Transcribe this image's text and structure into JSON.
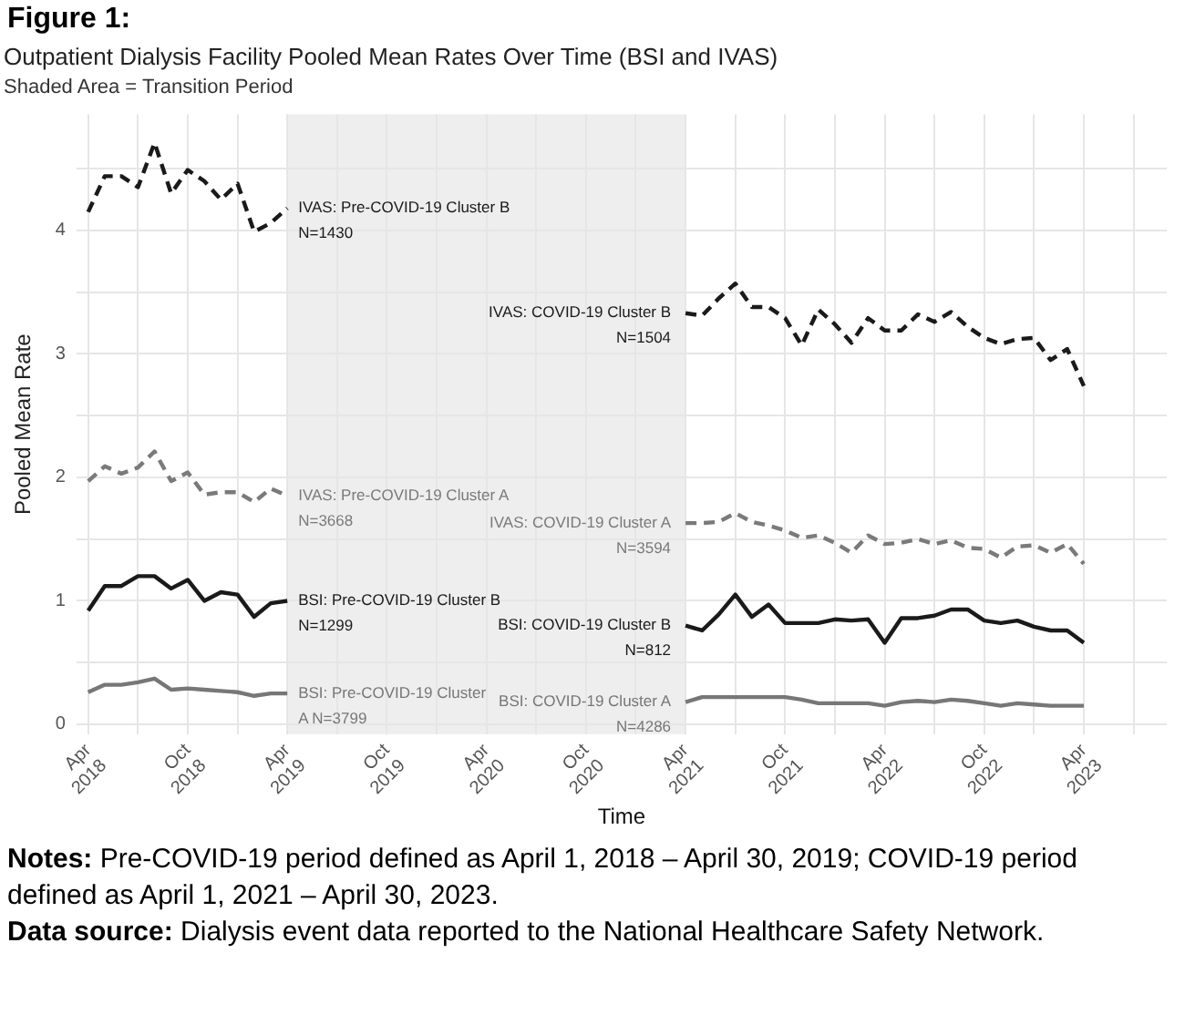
{
  "chart_data": {
    "type": "line",
    "title": "Outpatient Dialysis Facility Pooled Mean Rates Over Time (BSI and IVAS)",
    "subtitle": "Shaded Area = Transition Period",
    "xlabel": "Time",
    "ylabel": "Pooled Mean Rate",
    "annotations": [
      "Figure 1:",
      "Notes: Pre-COVID-19 period defined as April 1, 2018 – April 30, 2019; COVID-19 period defined as April 1, 2021 – April 30, 2023.",
      "Data source: Dialysis event data reported to the National Healthcare Safety Network."
    ],
    "xlim": [
      "2018-03-10",
      "2023-09-01"
    ],
    "xticks": [
      {
        "value": "2018-04",
        "label": "Apr 2018"
      },
      {
        "value": "2018-07",
        "label": null
      },
      {
        "value": "2018-10",
        "label": "Oct 2018"
      },
      {
        "value": "2019-01",
        "label": null
      },
      {
        "value": "2019-04",
        "label": "Apr 2019"
      },
      {
        "value": "2019-07",
        "label": null
      },
      {
        "value": "2019-10",
        "label": "Oct 2019"
      },
      {
        "value": "2020-01",
        "label": null
      },
      {
        "value": "2020-04",
        "label": "Apr 2020"
      },
      {
        "value": "2020-07",
        "label": null
      },
      {
        "value": "2020-10",
        "label": "Oct 2020"
      },
      {
        "value": "2021-01",
        "label": null
      },
      {
        "value": "2021-04",
        "label": "Apr 2021"
      },
      {
        "value": "2021-07",
        "label": null
      },
      {
        "value": "2021-10",
        "label": "Oct 2021"
      },
      {
        "value": "2022-01",
        "label": null
      },
      {
        "value": "2022-04",
        "label": "Apr 2022"
      },
      {
        "value": "2022-07",
        "label": null
      },
      {
        "value": "2022-10",
        "label": "Oct 2022"
      },
      {
        "value": "2023-01",
        "label": null
      },
      {
        "value": "2023-04",
        "label": "Apr 2023"
      },
      {
        "value": "2023-07",
        "label": null
      }
    ],
    "ylim": [
      -0.08,
      4.94
    ],
    "yticks": [
      0,
      {
        "value": 0.5,
        "label": null
      },
      1,
      {
        "value": 1.5,
        "label": null
      },
      2,
      {
        "value": 2.5,
        "label": null
      },
      3,
      {
        "value": 3.5,
        "label": null
      },
      4,
      {
        "value": 4.5,
        "label": null
      }
    ],
    "grid": true,
    "legend": false,
    "marker": "none",
    "bands": [
      {
        "axis": "x",
        "from": "2019-04",
        "to": "2021-04",
        "color": "#eeeeee"
      }
    ],
    "series": [
      {
        "name": "IVAS: Pre-COVID-19 Cluster B\nN=1430",
        "color": "#1a1a1a",
        "line_style": "dashed",
        "x": [
          "2018-04",
          "2018-05",
          "2018-06",
          "2018-07",
          "2018-08",
          "2018-09",
          "2018-10",
          "2018-11",
          "2018-12",
          "2019-01",
          "2019-02",
          "2019-03",
          "2019-04"
        ],
        "values": [
          4.15,
          4.44,
          4.44,
          4.35,
          4.71,
          4.3,
          4.49,
          4.4,
          4.25,
          4.38,
          3.99,
          4.06,
          4.18
        ]
      },
      {
        "name": "IVAS: Pre-COVID-19 Cluster A\nN=3668",
        "color": "#7a7a7a",
        "line_style": "dashed",
        "x": [
          "2018-04",
          "2018-05",
          "2018-06",
          "2018-07",
          "2018-08",
          "2018-09",
          "2018-10",
          "2018-11",
          "2018-12",
          "2019-01",
          "2019-02",
          "2019-03",
          "2019-04"
        ],
        "values": [
          1.97,
          2.09,
          2.03,
          2.08,
          2.21,
          1.97,
          2.04,
          1.86,
          1.88,
          1.88,
          1.8,
          1.91,
          1.85
        ]
      },
      {
        "name": "BSI: Pre-COVID-19 Cluster B\nN=1299",
        "color": "#1a1a1a",
        "line_style": "solid",
        "x": [
          "2018-04",
          "2018-05",
          "2018-06",
          "2018-07",
          "2018-08",
          "2018-09",
          "2018-10",
          "2018-11",
          "2018-12",
          "2019-01",
          "2019-02",
          "2019-03",
          "2019-04"
        ],
        "values": [
          0.92,
          1.12,
          1.12,
          1.2,
          1.2,
          1.1,
          1.17,
          1.0,
          1.07,
          1.05,
          0.87,
          0.98,
          1.0
        ]
      },
      {
        "name": "BSI: Pre-COVID-19 Cluster\nA N=3799",
        "color": "#777777",
        "line_style": "solid",
        "x": [
          "2018-04",
          "2018-05",
          "2018-06",
          "2018-07",
          "2018-08",
          "2018-09",
          "2018-10",
          "2018-11",
          "2018-12",
          "2019-01",
          "2019-02",
          "2019-03",
          "2019-04"
        ],
        "values": [
          0.26,
          0.32,
          0.32,
          0.34,
          0.37,
          0.28,
          0.29,
          0.28,
          0.27,
          0.26,
          0.23,
          0.25,
          0.25
        ]
      },
      {
        "name": "IVAS: COVID-19 Cluster B\nN=1504",
        "color": "#1a1a1a",
        "line_style": "dashed",
        "x": [
          "2021-04",
          "2021-05",
          "2021-06",
          "2021-07",
          "2021-08",
          "2021-09",
          "2021-10",
          "2021-11",
          "2021-12",
          "2022-01",
          "2022-02",
          "2022-03",
          "2022-04",
          "2022-05",
          "2022-06",
          "2022-07",
          "2022-08",
          "2022-09",
          "2022-10",
          "2022-11",
          "2022-12",
          "2023-01",
          "2023-02",
          "2023-03",
          "2023-04"
        ],
        "values": [
          3.33,
          3.31,
          3.45,
          3.57,
          3.38,
          3.38,
          3.29,
          3.07,
          3.36,
          3.24,
          3.09,
          3.29,
          3.19,
          3.19,
          3.32,
          3.26,
          3.34,
          3.22,
          3.13,
          3.08,
          3.12,
          3.13,
          2.95,
          3.04,
          2.74
        ]
      },
      {
        "name": "IVAS: COVID-19 Cluster A\nN=3594",
        "color": "#7a7a7a",
        "line_style": "dashed",
        "x": [
          "2021-04",
          "2021-05",
          "2021-06",
          "2021-07",
          "2021-08",
          "2021-09",
          "2021-10",
          "2021-11",
          "2021-12",
          "2022-01",
          "2022-02",
          "2022-03",
          "2022-04",
          "2022-05",
          "2022-06",
          "2022-07",
          "2022-08",
          "2022-09",
          "2022-10",
          "2022-11",
          "2022-12",
          "2023-01",
          "2023-02",
          "2023-03",
          "2023-04"
        ],
        "values": [
          1.63,
          1.63,
          1.64,
          1.71,
          1.64,
          1.61,
          1.57,
          1.51,
          1.53,
          1.47,
          1.39,
          1.53,
          1.46,
          1.47,
          1.5,
          1.46,
          1.49,
          1.43,
          1.42,
          1.35,
          1.44,
          1.45,
          1.39,
          1.46,
          1.3
        ]
      },
      {
        "name": "BSI: COVID-19 Cluster B\nN=812",
        "color": "#1a1a1a",
        "line_style": "solid",
        "x": [
          "2021-04",
          "2021-05",
          "2021-06",
          "2021-07",
          "2021-08",
          "2021-09",
          "2021-10",
          "2021-11",
          "2021-12",
          "2022-01",
          "2022-02",
          "2022-03",
          "2022-04",
          "2022-05",
          "2022-06",
          "2022-07",
          "2022-08",
          "2022-09",
          "2022-10",
          "2022-11",
          "2022-12",
          "2023-01",
          "2023-02",
          "2023-03",
          "2023-04"
        ],
        "values": [
          0.8,
          0.76,
          0.89,
          1.05,
          0.87,
          0.97,
          0.82,
          0.82,
          0.82,
          0.85,
          0.84,
          0.85,
          0.66,
          0.86,
          0.86,
          0.88,
          0.93,
          0.93,
          0.84,
          0.82,
          0.84,
          0.79,
          0.76,
          0.76,
          0.66
        ]
      },
      {
        "name": "BSI: COVID-19 Cluster A\nN=4286",
        "color": "#777777",
        "line_style": "solid",
        "x": [
          "2021-04",
          "2021-05",
          "2021-06",
          "2021-07",
          "2021-08",
          "2021-09",
          "2021-10",
          "2021-11",
          "2021-12",
          "2022-01",
          "2022-02",
          "2022-03",
          "2022-04",
          "2022-05",
          "2022-06",
          "2022-07",
          "2022-08",
          "2022-09",
          "2022-10",
          "2022-11",
          "2022-12",
          "2023-01",
          "2023-02",
          "2023-03",
          "2023-04"
        ],
        "values": [
          0.18,
          0.22,
          0.22,
          0.22,
          0.22,
          0.22,
          0.22,
          0.2,
          0.17,
          0.17,
          0.17,
          0.17,
          0.15,
          0.18,
          0.19,
          0.18,
          0.2,
          0.19,
          0.17,
          0.15,
          0.17,
          0.16,
          0.15,
          0.15,
          0.15
        ]
      }
    ]
  }
}
